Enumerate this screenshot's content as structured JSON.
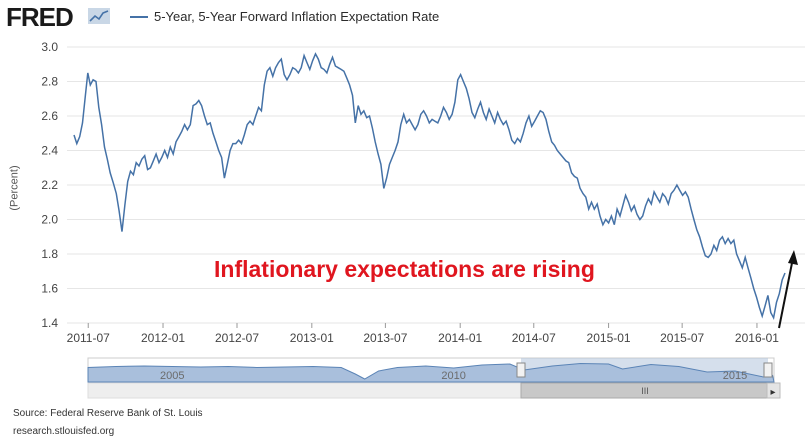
{
  "header": {
    "logo_text": "FRED",
    "legend_label": "5-Year, 5-Year Forward Inflation Expectation Rate"
  },
  "chart_data": {
    "type": "line",
    "title": "",
    "ylabel": "(Percent)",
    "ylim": [
      1.4,
      3.0
    ],
    "yticks": [
      "1.4",
      "1.6",
      "1.8",
      "2.0",
      "2.2",
      "2.4",
      "2.6",
      "2.8",
      "3.0"
    ],
    "xticks": [
      "2011-07",
      "2012-01",
      "2012-07",
      "2013-01",
      "2013-07",
      "2014-01",
      "2014-07",
      "2015-01",
      "2015-07",
      "2016-01"
    ],
    "grid": true,
    "color": "#4572a7",
    "series": [
      {
        "name": "5-Year, 5-Year Forward Inflation Expectation Rate",
        "points": [
          [
            "2011-05-27",
            2.49
          ],
          [
            "2011-06-03",
            2.44
          ],
          [
            "2011-06-10",
            2.48
          ],
          [
            "2011-06-17",
            2.56
          ],
          [
            "2011-06-24",
            2.72
          ],
          [
            "2011-06-30",
            2.85
          ],
          [
            "2011-07-06",
            2.78
          ],
          [
            "2011-07-13",
            2.81
          ],
          [
            "2011-07-20",
            2.8
          ],
          [
            "2011-07-27",
            2.65
          ],
          [
            "2011-08-03",
            2.55
          ],
          [
            "2011-08-10",
            2.42
          ],
          [
            "2011-08-17",
            2.35
          ],
          [
            "2011-08-24",
            2.27
          ],
          [
            "2011-09-01",
            2.21
          ],
          [
            "2011-09-08",
            2.15
          ],
          [
            "2011-09-15",
            2.05
          ],
          [
            "2011-09-22",
            1.93
          ],
          [
            "2011-09-29",
            2.08
          ],
          [
            "2011-10-06",
            2.22
          ],
          [
            "2011-10-13",
            2.28
          ],
          [
            "2011-10-20",
            2.26
          ],
          [
            "2011-10-27",
            2.33
          ],
          [
            "2011-11-03",
            2.31
          ],
          [
            "2011-11-10",
            2.35
          ],
          [
            "2011-11-17",
            2.37
          ],
          [
            "2011-11-24",
            2.29
          ],
          [
            "2011-12-01",
            2.3
          ],
          [
            "2011-12-08",
            2.34
          ],
          [
            "2011-12-15",
            2.38
          ],
          [
            "2011-12-22",
            2.33
          ],
          [
            "2011-12-29",
            2.36
          ],
          [
            "2012-01-05",
            2.4
          ],
          [
            "2012-01-12",
            2.36
          ],
          [
            "2012-01-19",
            2.42
          ],
          [
            "2012-01-26",
            2.38
          ],
          [
            "2012-02-02",
            2.45
          ],
          [
            "2012-02-09",
            2.48
          ],
          [
            "2012-02-16",
            2.51
          ],
          [
            "2012-02-23",
            2.55
          ],
          [
            "2012-03-01",
            2.52
          ],
          [
            "2012-03-08",
            2.55
          ],
          [
            "2012-03-15",
            2.66
          ],
          [
            "2012-03-22",
            2.67
          ],
          [
            "2012-03-29",
            2.69
          ],
          [
            "2012-04-05",
            2.66
          ],
          [
            "2012-04-12",
            2.6
          ],
          [
            "2012-04-19",
            2.55
          ],
          [
            "2012-04-26",
            2.56
          ],
          [
            "2012-05-03",
            2.5
          ],
          [
            "2012-05-10",
            2.45
          ],
          [
            "2012-05-17",
            2.4
          ],
          [
            "2012-05-24",
            2.36
          ],
          [
            "2012-05-31",
            2.24
          ],
          [
            "2012-06-07",
            2.32
          ],
          [
            "2012-06-14",
            2.4
          ],
          [
            "2012-06-21",
            2.44
          ],
          [
            "2012-06-28",
            2.44
          ],
          [
            "2012-07-05",
            2.46
          ],
          [
            "2012-07-12",
            2.44
          ],
          [
            "2012-07-19",
            2.49
          ],
          [
            "2012-07-26",
            2.55
          ],
          [
            "2012-08-02",
            2.57
          ],
          [
            "2012-08-09",
            2.55
          ],
          [
            "2012-08-16",
            2.6
          ],
          [
            "2012-08-23",
            2.65
          ],
          [
            "2012-08-30",
            2.63
          ],
          [
            "2012-09-06",
            2.78
          ],
          [
            "2012-09-13",
            2.86
          ],
          [
            "2012-09-20",
            2.88
          ],
          [
            "2012-09-27",
            2.83
          ],
          [
            "2012-10-04",
            2.88
          ],
          [
            "2012-10-11",
            2.91
          ],
          [
            "2012-10-18",
            2.93
          ],
          [
            "2012-10-25",
            2.84
          ],
          [
            "2012-11-01",
            2.81
          ],
          [
            "2012-11-08",
            2.84
          ],
          [
            "2012-11-15",
            2.88
          ],
          [
            "2012-11-22",
            2.87
          ],
          [
            "2012-11-29",
            2.85
          ],
          [
            "2012-12-06",
            2.88
          ],
          [
            "2012-12-13",
            2.95
          ],
          [
            "2012-12-20",
            2.91
          ],
          [
            "2012-12-27",
            2.87
          ],
          [
            "2013-01-03",
            2.92
          ],
          [
            "2013-01-10",
            2.96
          ],
          [
            "2013-01-17",
            2.93
          ],
          [
            "2013-01-24",
            2.88
          ],
          [
            "2013-01-31",
            2.87
          ],
          [
            "2013-02-07",
            2.85
          ],
          [
            "2013-02-14",
            2.9
          ],
          [
            "2013-02-21",
            2.94
          ],
          [
            "2013-02-28",
            2.89
          ],
          [
            "2013-03-07",
            2.88
          ],
          [
            "2013-03-14",
            2.87
          ],
          [
            "2013-03-21",
            2.86
          ],
          [
            "2013-03-28",
            2.82
          ],
          [
            "2013-04-04",
            2.78
          ],
          [
            "2013-04-11",
            2.72
          ],
          [
            "2013-04-18",
            2.56
          ],
          [
            "2013-04-25",
            2.66
          ],
          [
            "2013-05-02",
            2.61
          ],
          [
            "2013-05-09",
            2.63
          ],
          [
            "2013-05-16",
            2.59
          ],
          [
            "2013-05-23",
            2.6
          ],
          [
            "2013-05-30",
            2.53
          ],
          [
            "2013-06-06",
            2.45
          ],
          [
            "2013-06-13",
            2.38
          ],
          [
            "2013-06-20",
            2.32
          ],
          [
            "2013-06-27",
            2.18
          ],
          [
            "2013-07-04",
            2.24
          ],
          [
            "2013-07-11",
            2.32
          ],
          [
            "2013-07-18",
            2.36
          ],
          [
            "2013-07-25",
            2.4
          ],
          [
            "2013-08-01",
            2.45
          ],
          [
            "2013-08-08",
            2.55
          ],
          [
            "2013-08-15",
            2.61
          ],
          [
            "2013-08-22",
            2.56
          ],
          [
            "2013-08-29",
            2.58
          ],
          [
            "2013-09-05",
            2.55
          ],
          [
            "2013-09-12",
            2.52
          ],
          [
            "2013-09-19",
            2.55
          ],
          [
            "2013-09-26",
            2.61
          ],
          [
            "2013-10-03",
            2.63
          ],
          [
            "2013-10-10",
            2.6
          ],
          [
            "2013-10-17",
            2.56
          ],
          [
            "2013-10-24",
            2.58
          ],
          [
            "2013-10-31",
            2.57
          ],
          [
            "2013-11-07",
            2.56
          ],
          [
            "2013-11-14",
            2.6
          ],
          [
            "2013-11-21",
            2.65
          ],
          [
            "2013-11-28",
            2.62
          ],
          [
            "2013-12-05",
            2.58
          ],
          [
            "2013-12-12",
            2.61
          ],
          [
            "2013-12-19",
            2.68
          ],
          [
            "2013-12-26",
            2.81
          ],
          [
            "2014-01-02",
            2.84
          ],
          [
            "2014-01-09",
            2.8
          ],
          [
            "2014-01-16",
            2.76
          ],
          [
            "2014-01-23",
            2.7
          ],
          [
            "2014-01-30",
            2.62
          ],
          [
            "2014-02-06",
            2.59
          ],
          [
            "2014-02-13",
            2.64
          ],
          [
            "2014-02-20",
            2.68
          ],
          [
            "2014-02-27",
            2.62
          ],
          [
            "2014-03-06",
            2.58
          ],
          [
            "2014-03-13",
            2.64
          ],
          [
            "2014-03-20",
            2.6
          ],
          [
            "2014-03-27",
            2.56
          ],
          [
            "2014-04-03",
            2.62
          ],
          [
            "2014-04-10",
            2.58
          ],
          [
            "2014-04-17",
            2.55
          ],
          [
            "2014-04-24",
            2.57
          ],
          [
            "2014-05-01",
            2.52
          ],
          [
            "2014-05-08",
            2.46
          ],
          [
            "2014-05-15",
            2.44
          ],
          [
            "2014-05-22",
            2.47
          ],
          [
            "2014-05-29",
            2.45
          ],
          [
            "2014-06-05",
            2.5
          ],
          [
            "2014-06-12",
            2.56
          ],
          [
            "2014-06-19",
            2.6
          ],
          [
            "2014-06-26",
            2.54
          ],
          [
            "2014-07-03",
            2.57
          ],
          [
            "2014-07-10",
            2.6
          ],
          [
            "2014-07-17",
            2.63
          ],
          [
            "2014-07-24",
            2.62
          ],
          [
            "2014-07-31",
            2.58
          ],
          [
            "2014-08-07",
            2.51
          ],
          [
            "2014-08-14",
            2.45
          ],
          [
            "2014-08-21",
            2.43
          ],
          [
            "2014-08-28",
            2.4
          ],
          [
            "2014-09-04",
            2.38
          ],
          [
            "2014-09-11",
            2.36
          ],
          [
            "2014-09-18",
            2.34
          ],
          [
            "2014-09-25",
            2.33
          ],
          [
            "2014-10-02",
            2.27
          ],
          [
            "2014-10-09",
            2.25
          ],
          [
            "2014-10-16",
            2.24
          ],
          [
            "2014-10-23",
            2.18
          ],
          [
            "2014-10-30",
            2.15
          ],
          [
            "2014-11-06",
            2.13
          ],
          [
            "2014-11-13",
            2.06
          ],
          [
            "2014-11-20",
            2.1
          ],
          [
            "2014-11-27",
            2.06
          ],
          [
            "2014-12-04",
            2.09
          ],
          [
            "2014-12-11",
            2.02
          ],
          [
            "2014-12-18",
            1.97
          ],
          [
            "2014-12-25",
            2.0
          ],
          [
            "2015-01-01",
            1.98
          ],
          [
            "2015-01-08",
            2.02
          ],
          [
            "2015-01-15",
            1.97
          ],
          [
            "2015-01-22",
            2.06
          ],
          [
            "2015-01-29",
            2.02
          ],
          [
            "2015-02-05",
            2.08
          ],
          [
            "2015-02-12",
            2.14
          ],
          [
            "2015-02-19",
            2.1
          ],
          [
            "2015-02-26",
            2.05
          ],
          [
            "2015-03-05",
            2.08
          ],
          [
            "2015-03-12",
            2.03
          ],
          [
            "2015-03-19",
            2.0
          ],
          [
            "2015-03-26",
            2.02
          ],
          [
            "2015-04-02",
            2.08
          ],
          [
            "2015-04-09",
            2.12
          ],
          [
            "2015-04-16",
            2.09
          ],
          [
            "2015-04-23",
            2.16
          ],
          [
            "2015-04-30",
            2.13
          ],
          [
            "2015-05-07",
            2.1
          ],
          [
            "2015-05-14",
            2.15
          ],
          [
            "2015-05-21",
            2.13
          ],
          [
            "2015-05-28",
            2.09
          ],
          [
            "2015-06-04",
            2.15
          ],
          [
            "2015-06-11",
            2.17
          ],
          [
            "2015-06-18",
            2.2
          ],
          [
            "2015-06-25",
            2.17
          ],
          [
            "2015-07-02",
            2.14
          ],
          [
            "2015-07-09",
            2.16
          ],
          [
            "2015-07-16",
            2.13
          ],
          [
            "2015-07-23",
            2.06
          ],
          [
            "2015-07-30",
            2.0
          ],
          [
            "2015-08-06",
            1.94
          ],
          [
            "2015-08-13",
            1.9
          ],
          [
            "2015-08-20",
            1.84
          ],
          [
            "2015-08-27",
            1.79
          ],
          [
            "2015-09-03",
            1.78
          ],
          [
            "2015-09-10",
            1.8
          ],
          [
            "2015-09-17",
            1.85
          ],
          [
            "2015-09-24",
            1.82
          ],
          [
            "2015-10-01",
            1.88
          ],
          [
            "2015-10-08",
            1.9
          ],
          [
            "2015-10-15",
            1.86
          ],
          [
            "2015-10-22",
            1.89
          ],
          [
            "2015-10-29",
            1.86
          ],
          [
            "2015-11-05",
            1.88
          ],
          [
            "2015-11-12",
            1.8
          ],
          [
            "2015-11-19",
            1.76
          ],
          [
            "2015-11-26",
            1.72
          ],
          [
            "2015-12-03",
            1.78
          ],
          [
            "2015-12-10",
            1.72
          ],
          [
            "2015-12-17",
            1.66
          ],
          [
            "2015-12-24",
            1.6
          ],
          [
            "2015-12-31",
            1.55
          ],
          [
            "2016-01-07",
            1.49
          ],
          [
            "2016-01-14",
            1.44
          ],
          [
            "2016-01-21",
            1.5
          ],
          [
            "2016-01-28",
            1.56
          ],
          [
            "2016-02-04",
            1.46
          ],
          [
            "2016-02-11",
            1.43
          ],
          [
            "2016-02-18",
            1.52
          ],
          [
            "2016-02-25",
            1.57
          ],
          [
            "2016-03-03",
            1.65
          ],
          [
            "2016-03-10",
            1.69
          ]
        ]
      }
    ],
    "navigator": {
      "labels": [
        "2005",
        "2010",
        "2015"
      ],
      "points": [
        [
          "2004-01-01",
          2.45
        ],
        [
          "2004-07-01",
          2.55
        ],
        [
          "2005-01-01",
          2.6
        ],
        [
          "2005-07-01",
          2.55
        ],
        [
          "2006-01-01",
          2.5
        ],
        [
          "2006-07-01",
          2.55
        ],
        [
          "2007-01-01",
          2.45
        ],
        [
          "2007-07-01",
          2.5
        ],
        [
          "2008-01-01",
          2.55
        ],
        [
          "2008-07-01",
          2.45
        ],
        [
          "2008-10-01",
          1.8
        ],
        [
          "2008-12-01",
          1.3
        ],
        [
          "2009-03-01",
          2.1
        ],
        [
          "2009-07-01",
          2.45
        ],
        [
          "2010-01-01",
          2.6
        ],
        [
          "2010-07-01",
          2.4
        ],
        [
          "2011-01-01",
          2.7
        ],
        [
          "2011-07-01",
          2.8
        ],
        [
          "2011-10-01",
          2.2
        ],
        [
          "2012-04-01",
          2.6
        ],
        [
          "2012-10-01",
          2.85
        ],
        [
          "2013-04-01",
          2.8
        ],
        [
          "2013-07-01",
          2.3
        ],
        [
          "2014-01-01",
          2.75
        ],
        [
          "2014-07-01",
          2.55
        ],
        [
          "2015-01-01",
          2.0
        ],
        [
          "2015-07-01",
          2.1
        ],
        [
          "2016-01-01",
          1.5
        ],
        [
          "2016-03-01",
          1.65
        ]
      ]
    }
  },
  "annotation": {
    "text": "Inflationary expectations are rising",
    "color": "#e0161f"
  },
  "footer": {
    "source": "Source: Federal Reserve Bank of St. Louis",
    "site": "research.stlouisfed.org"
  },
  "scrollbar": {
    "thumb_glyph": "III",
    "right_arrow": "▸"
  }
}
